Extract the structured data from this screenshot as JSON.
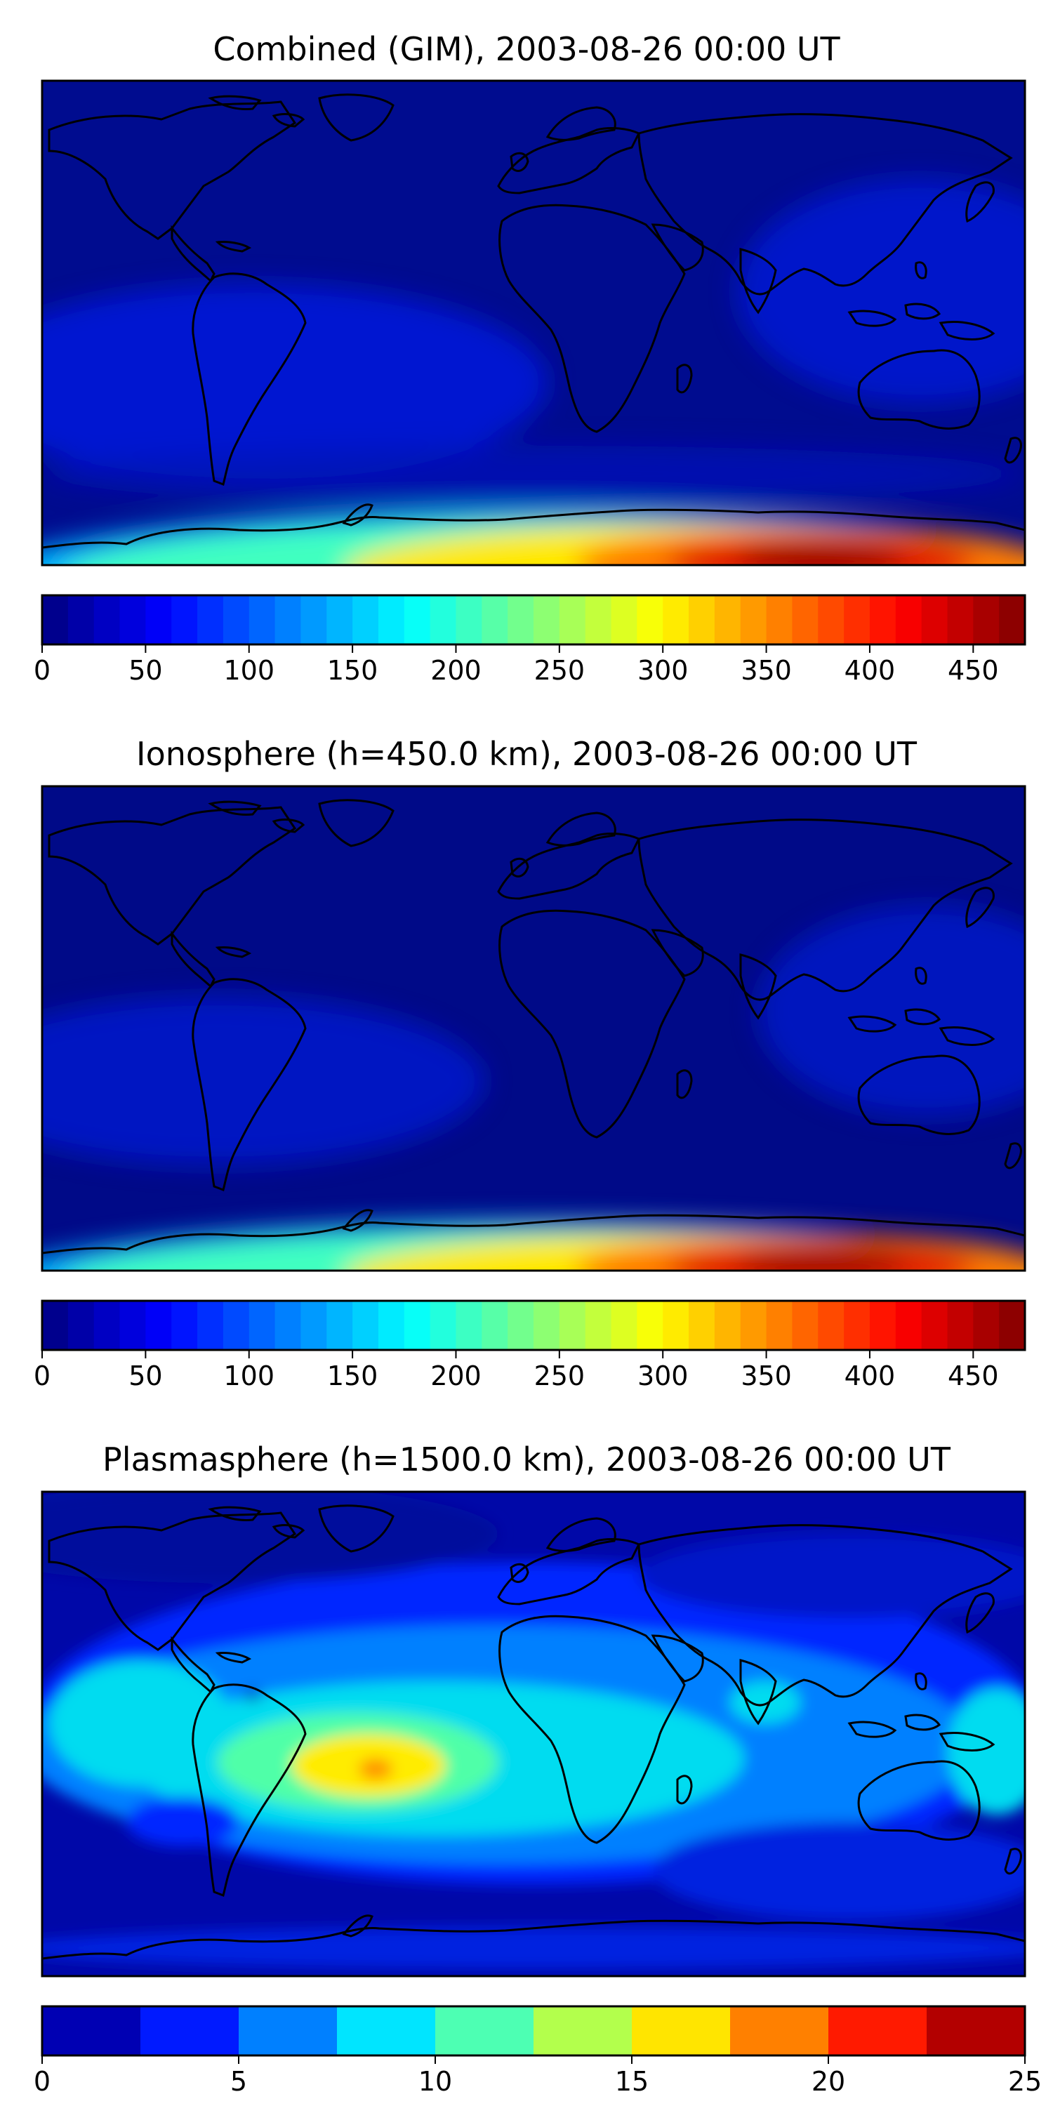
{
  "panels": [
    {
      "title": "Combined (GIM), 2003-08-26 00:00 UT",
      "colorbar": {
        "min": 0,
        "max": 475,
        "levels": 38,
        "ticks": [
          "0",
          "50",
          "100",
          "150",
          "200",
          "250",
          "300",
          "350",
          "400",
          "450"
        ],
        "tick_values": [
          0,
          50,
          100,
          150,
          200,
          250,
          300,
          350,
          400,
          450
        ]
      },
      "field_max_value": 475,
      "colormap": "jet"
    },
    {
      "title": "Ionosphere  (h=450.0 km), 2003-08-26 00:00 UT",
      "colorbar": {
        "min": 0,
        "max": 475,
        "levels": 38,
        "ticks": [
          "0",
          "50",
          "100",
          "150",
          "200",
          "250",
          "300",
          "350",
          "400",
          "450"
        ],
        "tick_values": [
          0,
          50,
          100,
          150,
          200,
          250,
          300,
          350,
          400,
          450
        ]
      },
      "field_max_value": 475,
      "colormap": "jet"
    },
    {
      "title": "Plasmasphere (h=1500.0 km), 2003-08-26 00:00 UT",
      "colorbar": {
        "min": 0,
        "max": 25,
        "levels": 10,
        "ticks": [
          "0",
          "5",
          "10",
          "15",
          "20",
          "25"
        ],
        "tick_values": [
          0,
          5,
          10,
          15,
          20,
          25
        ]
      },
      "field_max_value": 16,
      "colormap": "jet"
    }
  ],
  "colors": {
    "land_outline": "#000000",
    "frame": "#000000"
  }
}
